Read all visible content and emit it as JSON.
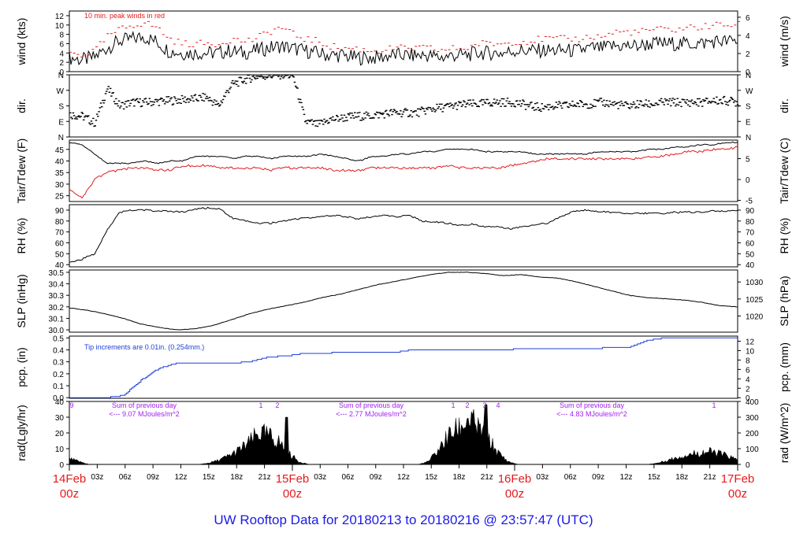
{
  "footer_title": "UW Rooftop Data for 20180213  to  20180216 @ 23:57:47  (UTC)",
  "colors": {
    "frame": "#000000",
    "primary": "#000000",
    "gust": "#e41a1c",
    "dew": "#e41a1c",
    "precip": "#1f3fd6",
    "note_purple": "#a020f0",
    "title_blue": "#1a1ae6",
    "day_red": "#e41a1c"
  },
  "x_axis": {
    "hour_ticks": [
      "03z",
      "06z",
      "09z",
      "12z",
      "15z",
      "18z",
      "21z",
      "03z",
      "06z",
      "09z",
      "12z",
      "15z",
      "18z",
      "21z",
      "03z",
      "06z",
      "09z",
      "12z",
      "15z",
      "18z",
      "21z"
    ],
    "day_labels": [
      {
        "date": "14Feb",
        "hour": "00z"
      },
      {
        "date": "15Feb",
        "hour": "00z"
      },
      {
        "date": "16Feb",
        "hour": "00z"
      },
      {
        "date": "17Feb",
        "hour": "00z"
      }
    ]
  },
  "chart_data": [
    {
      "type": "line",
      "ylabel": "wind (kts)",
      "ylabel_right": "wind (m/s)",
      "ylim": [
        0,
        13
      ],
      "yticks": [
        0,
        2,
        4,
        6,
        8,
        10,
        12
      ],
      "yticks_right": [
        0,
        2,
        4,
        6
      ],
      "annotation": "10 min. peak winds in red",
      "series": [
        {
          "values": [
            3,
            2.5,
            3,
            5,
            6.5,
            7,
            7.5,
            6.5,
            4.5,
            4,
            4,
            4,
            4,
            4.5,
            4,
            4.5,
            5,
            5.5,
            5,
            4.5,
            4,
            3.5,
            3.5,
            3,
            3,
            3,
            3.5,
            3.5,
            3.5,
            3.5,
            3,
            3.5,
            3.5,
            4,
            4,
            4,
            4.5,
            4.5,
            4.5,
            4.5,
            4.5,
            4.5,
            5,
            5,
            5.5,
            5.5,
            5.5,
            6,
            6,
            6,
            6,
            6,
            6.5,
            6.5,
            6.5
          ]
        },
        {
          "values": [
            4,
            3.5,
            4.5,
            7.5,
            9,
            10,
            10.5,
            9.5,
            7,
            6,
            6,
            6,
            6,
            7,
            6.5,
            7,
            8.5,
            9.5,
            8,
            7,
            6.5,
            5.5,
            5,
            5,
            4.5,
            4.5,
            5,
            5,
            5,
            5,
            4.5,
            5,
            5,
            6,
            6,
            6,
            6.5,
            6.5,
            7,
            7,
            7,
            7,
            7.5,
            7.5,
            8.5,
            8.5,
            8.5,
            9,
            9,
            9,
            9.5,
            9.5,
            10,
            10,
            10
          ]
        }
      ]
    },
    {
      "type": "scatter",
      "ylabel": "dir.",
      "ylabel_right": "dir.",
      "ylim": [
        0,
        360
      ],
      "yticks": [
        "N",
        "E",
        "S",
        "W",
        "N"
      ],
      "series": [
        {
          "values": [
            130,
            120,
            80,
            280,
            180,
            200,
            200,
            205,
            210,
            215,
            220,
            230,
            180,
            300,
            330,
            350,
            355,
            360,
            355,
            90,
            70,
            100,
            110,
            120,
            120,
            130,
            140,
            140,
            140,
            160,
            170,
            180,
            190,
            190,
            200,
            200,
            200,
            180,
            170,
            180,
            180,
            190,
            190,
            200,
            190,
            180,
            190,
            190,
            200,
            200,
            200,
            200,
            210,
            210,
            200
          ]
        }
      ]
    },
    {
      "type": "line",
      "ylabel": "Tair/Tdew (F)",
      "ylabel_right": "Tair/Tdew (C)",
      "ylim": [
        22.5,
        49
      ],
      "yticks": [
        25,
        30,
        35,
        40,
        45
      ],
      "yticks_right": [
        -5,
        0,
        5
      ],
      "series": [
        {
          "values": [
            48,
            47,
            43,
            39,
            39,
            39,
            40,
            39,
            40,
            40,
            42,
            42,
            42,
            41,
            42,
            42,
            41,
            42,
            42,
            42,
            43,
            42,
            41,
            40,
            42,
            42,
            43,
            43,
            44,
            44,
            45,
            45,
            45,
            44,
            44,
            44,
            44,
            43,
            43,
            43,
            43,
            43,
            44,
            44,
            44,
            44,
            45,
            45,
            46,
            46,
            47,
            47,
            48,
            48
          ]
        },
        {
          "values": [
            28,
            24,
            32,
            35,
            36,
            37,
            37,
            36,
            36,
            38,
            38,
            38,
            37,
            37,
            37,
            37,
            36,
            37,
            37,
            37,
            37,
            36,
            36,
            36,
            37,
            37,
            37,
            37,
            37,
            37,
            38,
            37,
            37,
            37,
            37,
            38,
            39,
            40,
            41,
            41,
            41,
            41,
            41,
            41,
            41,
            41,
            42,
            42,
            43,
            44,
            44,
            45,
            45,
            46
          ]
        }
      ]
    },
    {
      "type": "line",
      "ylabel": "RH (%)",
      "ylabel_right": "RH (%)",
      "ylim": [
        38,
        95
      ],
      "yticks": [
        40,
        50,
        60,
        70,
        80,
        90
      ],
      "yticks_right": [
        40,
        50,
        60,
        70,
        80,
        90
      ],
      "series": [
        {
          "values": [
            42,
            45,
            50,
            72,
            88,
            90,
            90,
            89,
            89,
            88,
            91,
            92,
            91,
            82,
            80,
            78,
            78,
            80,
            82,
            83,
            84,
            85,
            84,
            82,
            84,
            85,
            84,
            85,
            80,
            79,
            78,
            76,
            77,
            75,
            75,
            73,
            75,
            77,
            78,
            84,
            89,
            90,
            89,
            88,
            87,
            87,
            87,
            87,
            88,
            88,
            88,
            89,
            89,
            90
          ]
        }
      ]
    },
    {
      "type": "line",
      "ylabel": "SLP (inHg)",
      "ylabel_right": "SLP (hPa)",
      "ylim": [
        29.98,
        30.52
      ],
      "yticks": [
        30.0,
        30.1,
        30.2,
        30.3,
        30.4,
        30.5
      ],
      "yticks_right": [
        1020,
        1025,
        1030
      ],
      "series": [
        {
          "values": [
            30.19,
            30.17,
            30.14,
            30.1,
            30.05,
            30.02,
            30.0,
            30.01,
            30.04,
            30.09,
            30.14,
            30.18,
            30.21,
            30.24,
            30.28,
            30.31,
            30.35,
            30.39,
            30.42,
            30.45,
            30.48,
            30.5,
            30.5,
            30.49,
            30.47,
            30.48,
            30.46,
            30.45,
            30.42,
            30.38,
            30.34,
            30.3,
            30.28,
            30.27,
            30.26,
            30.24,
            30.21,
            30.2
          ]
        }
      ]
    },
    {
      "type": "line",
      "ylabel": "pcp. (in)",
      "ylabel_right": "pcp. (mm)",
      "ylim": [
        -0.005,
        0.515
      ],
      "yticks": [
        0.0,
        0.1,
        0.2,
        0.3,
        0.4,
        0.5
      ],
      "yticks_right": [
        0,
        2,
        4,
        6,
        8,
        10,
        12
      ],
      "annotation": "Tip increments are 0.01in. (0.254mm.)",
      "series": [
        {
          "values": [
            0,
            0,
            0,
            0.02,
            0.15,
            0.25,
            0.29,
            0.29,
            0.29,
            0.29,
            0.3,
            0.34,
            0.35,
            0.37,
            0.37,
            0.38,
            0.38,
            0.38,
            0.38,
            0.4,
            0.4,
            0.4,
            0.4,
            0.4,
            0.4,
            0.41,
            0.41,
            0.41,
            0.41,
            0.41,
            0.42,
            0.42,
            0.48,
            0.5,
            0.5,
            0.5,
            0.5,
            0.5
          ]
        }
      ]
    },
    {
      "type": "area",
      "ylabel": "rad(Lgly/hr)",
      "ylabel_right": "rad (W/m^2)",
      "ylim": [
        0,
        40
      ],
      "yticks": [
        0,
        10,
        20,
        30,
        40
      ],
      "yticks_right": [
        0,
        100,
        200,
        300,
        400
      ],
      "daily_notes": [
        {
          "line1": "Sum of previous day",
          "line2": "<--- 9.07 MJoules/m^2"
        },
        {
          "line1": "Sum of previous day",
          "line2": "<--- 2.77 MJoules/m^2"
        },
        {
          "line1": "Sum of previous day",
          "line2": "<--- 4.83 MJoules/m^2"
        }
      ],
      "marks": [
        "9",
        "1",
        "2",
        "1",
        "2",
        "3",
        "4",
        "1"
      ],
      "series": [
        {
          "values": [
            4,
            2,
            0,
            0,
            0,
            0,
            0,
            0,
            0,
            0,
            0,
            0,
            0,
            0,
            1,
            3,
            6,
            10,
            15,
            22,
            20,
            16,
            8,
            2,
            0,
            0,
            0,
            0,
            0,
            0,
            0,
            0,
            0,
            0,
            0,
            0,
            2,
            10,
            20,
            25,
            32,
            25,
            18,
            8,
            2,
            0,
            0,
            0,
            0,
            0,
            0,
            0,
            0,
            0,
            0,
            0,
            0,
            0,
            0,
            1,
            3,
            5,
            7,
            8,
            9,
            8,
            6,
            3
          ]
        }
      ]
    }
  ]
}
